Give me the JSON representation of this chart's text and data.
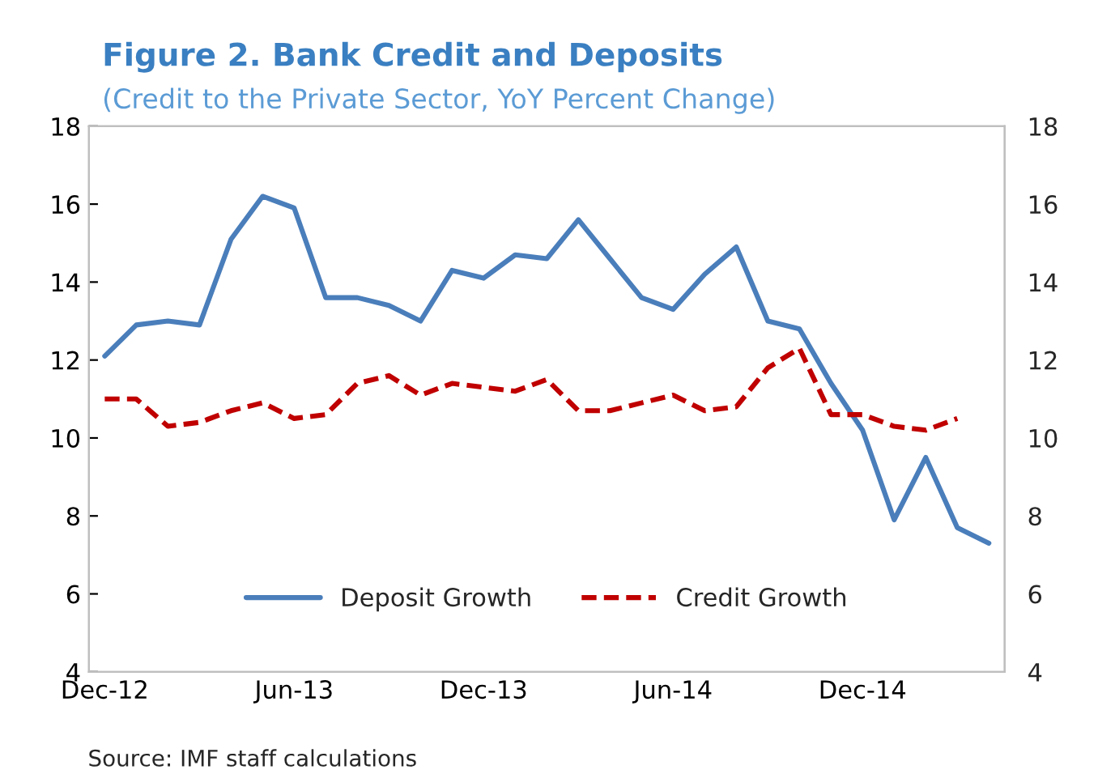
{
  "chart_data": {
    "type": "line",
    "title": "Figure 2. Bank Credit and Deposits",
    "subtitle": "(Credit to the Private Sector, YoY Percent Change)",
    "categories": [
      "Dec-12",
      null,
      null,
      null,
      null,
      null,
      "Jun-13",
      null,
      null,
      null,
      null,
      null,
      "Dec-13",
      null,
      null,
      null,
      null,
      null,
      "Jun-14",
      null,
      null,
      null,
      null,
      null,
      "Dec-14",
      null,
      null,
      null,
      null
    ],
    "series": [
      {
        "name": "Deposit Growth",
        "color": "#4a7ebb",
        "line_style": "solid",
        "values": [
          12.1,
          12.9,
          13.0,
          12.9,
          15.1,
          16.2,
          15.9,
          13.6,
          13.6,
          13.4,
          13.0,
          14.3,
          14.1,
          14.7,
          14.6,
          15.6,
          14.6,
          13.6,
          13.3,
          14.2,
          14.9,
          13.0,
          12.8,
          11.4,
          10.2,
          7.9,
          9.5,
          7.7,
          7.3
        ]
      },
      {
        "name": "Credit Growth",
        "color": "#c00000",
        "line_style": "dashed",
        "values": [
          11.0,
          11.0,
          10.3,
          10.4,
          10.7,
          10.9,
          10.5,
          10.6,
          11.4,
          11.6,
          11.1,
          11.4,
          11.3,
          11.2,
          11.5,
          10.7,
          10.7,
          10.9,
          11.1,
          10.7,
          10.8,
          11.8,
          12.3,
          10.6,
          10.6,
          10.3,
          10.2,
          10.5,
          null
        ]
      }
    ],
    "ylim": [
      4,
      18
    ],
    "yticks": [
      4,
      6,
      8,
      10,
      12,
      14,
      16,
      18
    ],
    "y2lim": [
      4,
      18
    ],
    "y2ticks": [
      4,
      6,
      8,
      10,
      12,
      14,
      16,
      18
    ],
    "legend": "bottom",
    "grid": false,
    "marker": "none",
    "annotations": [
      "Source: IMF staff calculations"
    ]
  }
}
